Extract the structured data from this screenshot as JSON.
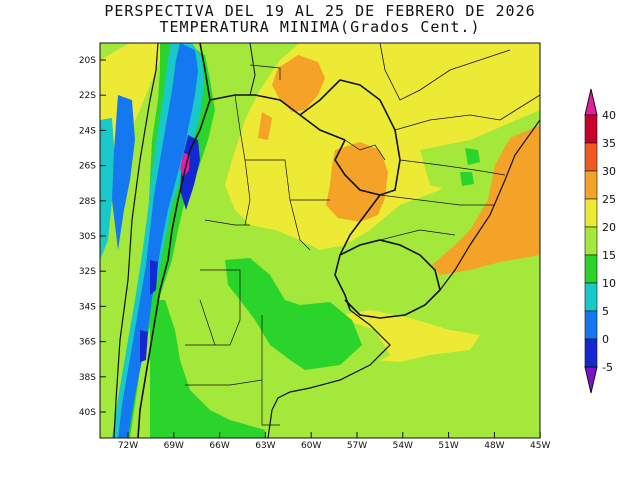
{
  "header": {
    "title": "PERSPECTIVA DEL 19 AL 25 DE FEBRERO DE 2026",
    "subtitle": "TEMPERATURA MINIMA(Grados Cent.)"
  },
  "axes": {
    "lat_labels": [
      "20S",
      "22S",
      "24S",
      "26S",
      "28S",
      "30S",
      "32S",
      "34S",
      "36S",
      "38S",
      "40S"
    ],
    "lon_labels": [
      "72W",
      "69W",
      "66W",
      "63W",
      "60W",
      "57W",
      "54W",
      "51W",
      "48W",
      "45W"
    ]
  },
  "colorbar": {
    "labels": [
      "40",
      "35",
      "30",
      "25",
      "20",
      "15",
      "10",
      "5",
      "0",
      "-5"
    ],
    "colors": [
      "#c8002d",
      "#ee5a22",
      "#f4a228",
      "#ecea34",
      "#a4e83c",
      "#2ad42a",
      "#19c8c8",
      "#1478f0",
      "#1428d2"
    ],
    "top_color": "#e51ea0",
    "bottom_color": "#7d12c8"
  },
  "field_colors": {
    "band_lt0": "#1428d2",
    "band_0_5": "#1478f0",
    "band_5_10": "#19c8c8",
    "band_10_15": "#2ad42a",
    "band_15_20": "#a4e83c",
    "band_20_25": "#ecea34",
    "band_25_30": "#f4a228",
    "band_gt35": "#e51ea0"
  }
}
